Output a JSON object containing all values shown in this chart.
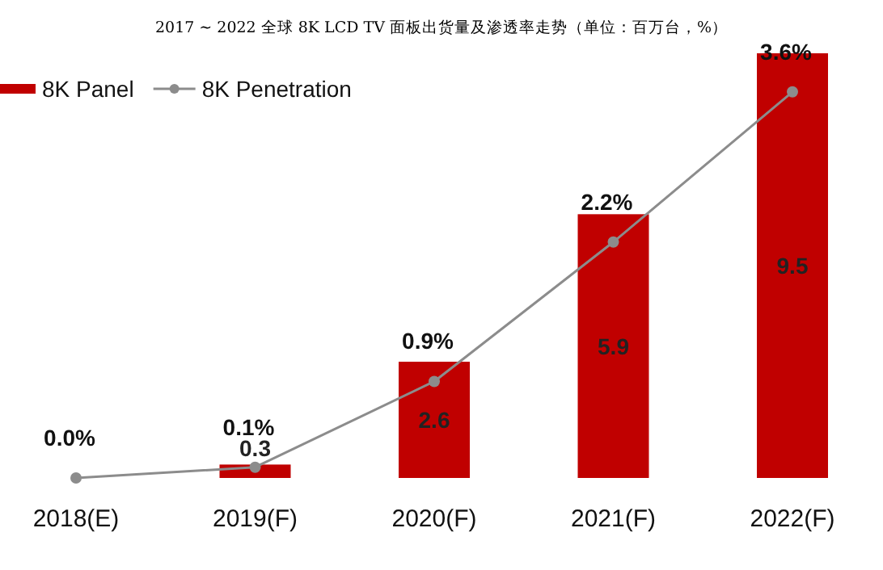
{
  "chart_data": {
    "type": "bar",
    "title": "2017 ~ 2022 全球 8K LCD TV 面板出货量及渗透率走势（单位：百万台，%）",
    "categories": [
      "2018(E)",
      "2019(F)",
      "2020(F)",
      "2021(F)",
      "2022(F)"
    ],
    "relative": false,
    "legend": "top left",
    "series": [
      {
        "name": "8K Panel",
        "color": "#c00000",
        "values": [
          0,
          0.3,
          2.6,
          5.9,
          9.5
        ],
        "value_labels": [
          null,
          "0.3",
          "2.6",
          "5.9",
          "9.5"
        ]
      },
      {
        "name": "8K Penetration",
        "type": "line",
        "axis": "y2",
        "color": "#8c8c8c",
        "marker": "circle",
        "values": [
          0.0,
          0.1,
          0.9,
          2.2,
          3.6
        ],
        "value_labels": [
          "0.0%",
          "0.1%",
          "0.9%",
          "2.2%",
          "3.6%"
        ]
      }
    ]
  }
}
